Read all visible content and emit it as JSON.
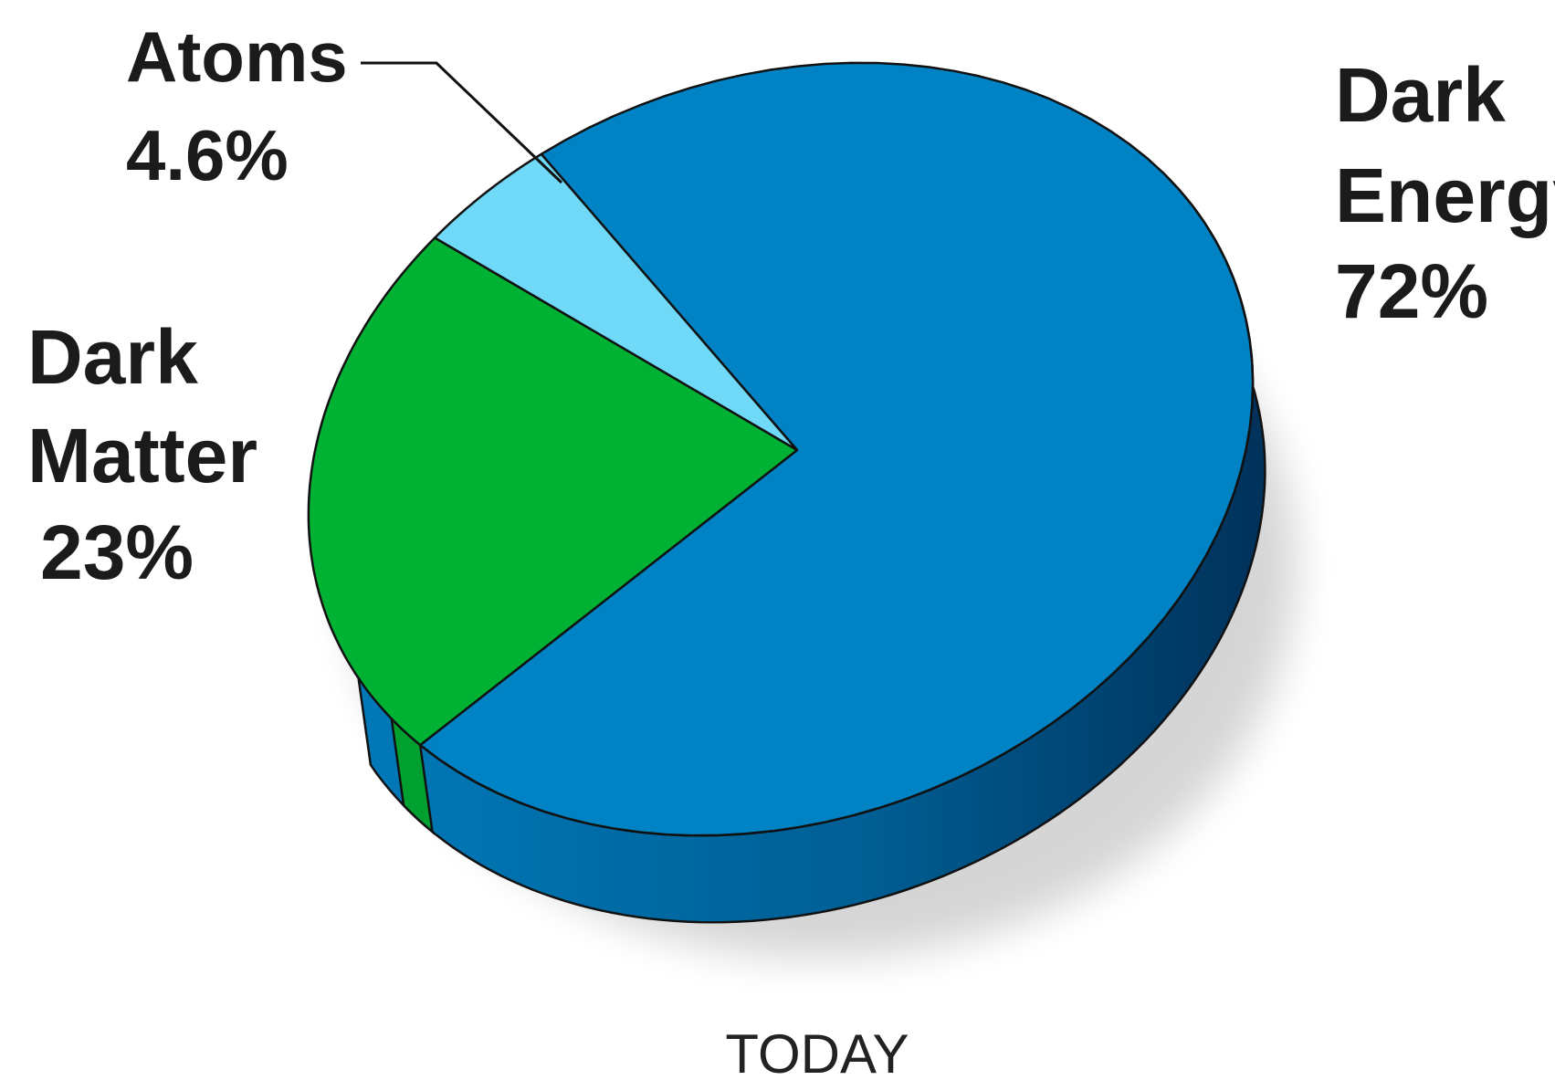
{
  "chart_data": {
    "type": "pie",
    "title": "",
    "caption": "TODAY",
    "slices": [
      {
        "name": "Dark Energy",
        "label_lines": [
          "Dark",
          "Energy"
        ],
        "value": 72,
        "value_label": "72%",
        "color": "#0083c5"
      },
      {
        "name": "Dark Matter",
        "label_lines": [
          "Dark",
          "Matter"
        ],
        "value": 23,
        "value_label": "23%",
        "color": "#00b233"
      },
      {
        "name": "Atoms",
        "label_lines": [
          "Atoms"
        ],
        "value": 4.6,
        "value_label": "4.6%",
        "color": "#6fd9f7"
      }
    ],
    "style": "3d-tilted",
    "legend": "none",
    "grid": false
  }
}
